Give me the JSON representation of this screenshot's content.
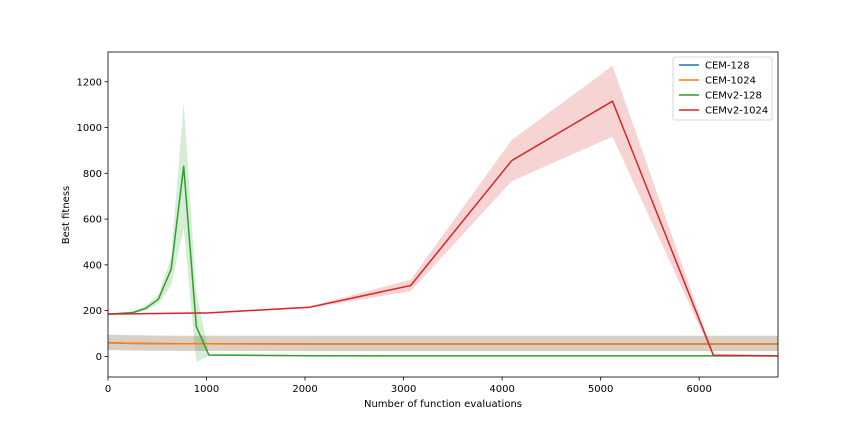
{
  "chart_data": {
    "type": "line",
    "title": "",
    "xlabel": "Number of function evaluations",
    "ylabel": "Best fitness",
    "xlim": [
      0,
      6800
    ],
    "ylim": [
      -90,
      1330
    ],
    "xticks": [
      0,
      1000,
      2000,
      3000,
      4000,
      5000,
      6000
    ],
    "yticks": [
      0,
      200,
      400,
      600,
      800,
      1000,
      1200
    ],
    "grid": false,
    "legend_position": "top-right",
    "series": [
      {
        "name": "CEM-128",
        "color": "#1f77b4",
        "x": [
          0,
          256,
          512,
          768,
          1024,
          2048,
          3072,
          4096,
          5120,
          6144,
          6800
        ],
        "y": [
          60,
          57,
          56,
          55,
          55,
          54,
          54,
          54,
          54,
          54,
          54
        ],
        "lower": [
          28,
          26,
          25,
          24,
          24,
          23,
          23,
          23,
          23,
          23,
          23
        ],
        "upper": [
          95,
          92,
          91,
          90,
          90,
          90,
          90,
          90,
          90,
          90,
          90
        ]
      },
      {
        "name": "CEM-1024",
        "color": "#ff7f0e",
        "x": [
          0,
          256,
          512,
          768,
          1024,
          2048,
          3072,
          4096,
          5120,
          6144,
          6800
        ],
        "y": [
          60,
          57,
          56,
          55,
          55,
          54,
          54,
          54,
          54,
          54,
          54
        ],
        "lower": [
          28,
          26,
          25,
          24,
          24,
          23,
          23,
          23,
          23,
          23,
          23
        ],
        "upper": [
          95,
          92,
          91,
          90,
          90,
          90,
          90,
          90,
          90,
          90,
          90
        ]
      },
      {
        "name": "CEMv2-128",
        "color": "#2ca02c",
        "x": [
          0,
          128,
          256,
          384,
          512,
          640,
          768,
          896,
          1024,
          2048,
          3072,
          4096,
          5120,
          6144,
          6800
        ],
        "y": [
          185,
          188,
          192,
          210,
          250,
          380,
          830,
          130,
          6,
          3,
          2,
          2,
          2,
          2,
          2
        ],
        "lower": [
          183,
          185,
          188,
          200,
          230,
          310,
          560,
          -25,
          2,
          0,
          0,
          0,
          0,
          0,
          0
        ],
        "upper": [
          187,
          191,
          198,
          222,
          270,
          430,
          1110,
          280,
          10,
          6,
          4,
          4,
          4,
          4,
          4
        ]
      },
      {
        "name": "CEMv2-1024",
        "color": "#d62728",
        "x": [
          0,
          1024,
          2048,
          3072,
          4096,
          5120,
          6144,
          6800
        ],
        "y": [
          185,
          190,
          215,
          310,
          855,
          1115,
          5,
          2
        ],
        "lower": [
          183,
          187,
          211,
          285,
          765,
          960,
          0,
          0
        ],
        "upper": [
          187,
          193,
          219,
          335,
          945,
          1270,
          10,
          4
        ]
      }
    ]
  }
}
